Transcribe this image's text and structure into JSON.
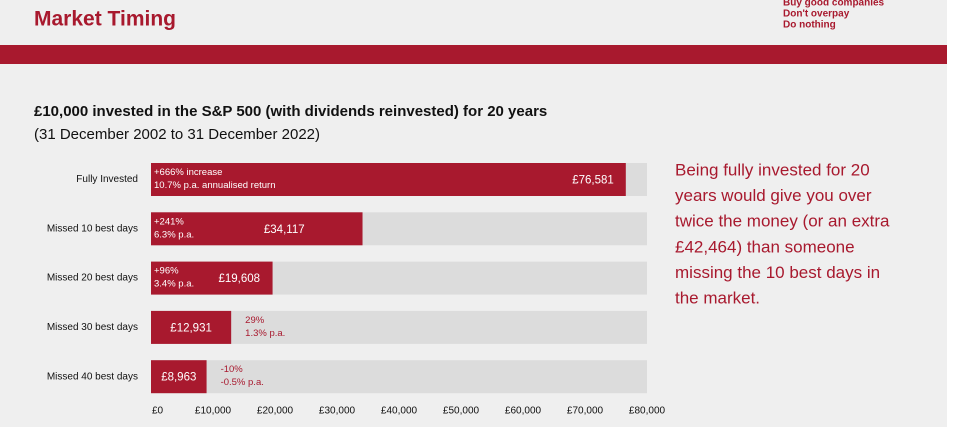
{
  "header": {
    "title": "Market Timing",
    "tagline": [
      "Buy good companies",
      "Don't overpay",
      "Do nothing"
    ]
  },
  "chart_data": {
    "type": "bar",
    "orientation": "horizontal",
    "title": "£10,000 invested in the S&P 500 (with dividends reinvested) for 20 years",
    "subtitle": "(31 December 2002 to 31 December 2022)",
    "categories": [
      "Fully Invested",
      "Missed 10 best days",
      "Missed 20 best days",
      "Missed 30 best days",
      "Missed 40 best days"
    ],
    "values": [
      76581,
      34117,
      19608,
      12931,
      8963
    ],
    "value_labels": [
      "£76,581",
      "£34,117",
      "£19,608",
      "£12,931",
      "£8,963"
    ],
    "annotations": [
      [
        "+666% increase",
        "10.7% p.a. annualised return"
      ],
      [
        "+241%",
        "6.3% p.a."
      ],
      [
        "+96%",
        "3.4% p.a."
      ],
      [
        "29%",
        "1.3% p.a."
      ],
      [
        "-10%",
        "-0.5% p.a."
      ]
    ],
    "color": "#a8192e",
    "track_color": "#dcdcdc",
    "xlim": [
      0,
      80000
    ],
    "xticks": [
      {
        "value": 0,
        "label": "£0"
      },
      {
        "value": 10000,
        "label": "£10,000"
      },
      {
        "value": 20000,
        "label": "£20,000"
      },
      {
        "value": 30000,
        "label": "£30,000"
      },
      {
        "value": 40000,
        "label": "£40,000"
      },
      {
        "value": 50000,
        "label": "£50,000"
      },
      {
        "value": 60000,
        "label": "£60,000"
      },
      {
        "value": 70000,
        "label": "£70,000"
      },
      {
        "value": 80000,
        "label": "£80,000"
      }
    ]
  },
  "commentary": [
    "Being fully invested for 20",
    "years would give you over",
    "twice the money (or an extra",
    "£42,464) than someone",
    "missing the 10 best days in",
    "the market."
  ]
}
